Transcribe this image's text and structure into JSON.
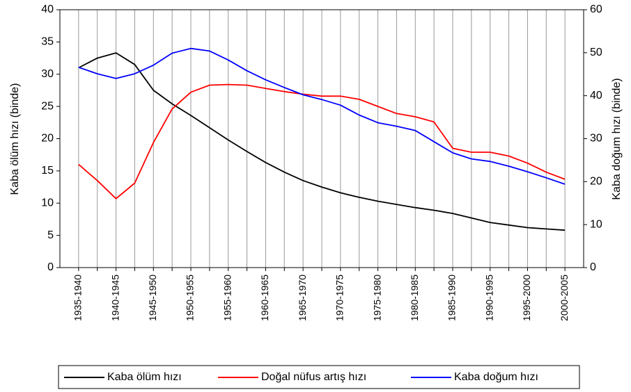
{
  "chart_data": {
    "type": "line",
    "y_label": "Kaba ölüm hızı (binde)",
    "y2_label": "Kaba doğum hızı (binde)",
    "categories": [
      "1935-1940",
      null,
      "1940-1945",
      null,
      "1945-1950",
      null,
      "1950-1955",
      null,
      "1955-1960",
      null,
      "1960-1965",
      null,
      "1965-1970",
      null,
      "1970-1975",
      null,
      "1975-1980",
      null,
      "1980-1985",
      null,
      "1985-1990",
      null,
      "1990-1995",
      null,
      "1995-2000",
      null,
      "2000-2005"
    ],
    "series": [
      {
        "name": "Kaba ölüm hızı",
        "color": "#000000",
        "values": [
          31.0,
          32.5,
          33.3,
          31.5,
          27.5,
          25.4,
          23.6,
          21.7,
          19.8,
          18.0,
          16.3,
          14.8,
          13.5,
          12.5,
          11.6,
          10.9,
          10.3,
          9.8,
          9.3,
          8.9,
          8.4,
          7.7,
          7.0,
          6.6,
          6.2,
          6.0,
          5.8
        ]
      },
      {
        "name": "Doğal nüfus artış hızı",
        "color": "#ff0000",
        "values": [
          16.0,
          13.5,
          10.7,
          13.1,
          19.4,
          24.6,
          27.2,
          28.3,
          28.4,
          28.3,
          27.8,
          27.3,
          26.9,
          26.6,
          26.6,
          26.1,
          25.0,
          23.9,
          23.4,
          22.6,
          18.5,
          17.9,
          17.9,
          17.3,
          16.2,
          14.8,
          13.7
        ]
      },
      {
        "name": "Kaba doğum hızı",
        "color": "#0000ff",
        "axis": "y2",
        "values": [
          46.6,
          45.1,
          44.0,
          45.1,
          47.1,
          49.9,
          51.0,
          50.4,
          48.3,
          45.8,
          43.7,
          41.9,
          40.2,
          39.1,
          37.8,
          35.5,
          33.7,
          32.9,
          31.9,
          29.3,
          26.7,
          25.3,
          24.7,
          23.6,
          22.3,
          20.9,
          19.4
        ]
      }
    ],
    "ylim": [
      0,
      40
    ],
    "yticks": [
      0,
      5,
      10,
      15,
      20,
      25,
      30,
      35,
      40
    ],
    "y2lim": [
      0,
      60
    ],
    "y2ticks": [
      0,
      10,
      20,
      30,
      40,
      50,
      60
    ],
    "grid": true,
    "legend": "bottom"
  }
}
